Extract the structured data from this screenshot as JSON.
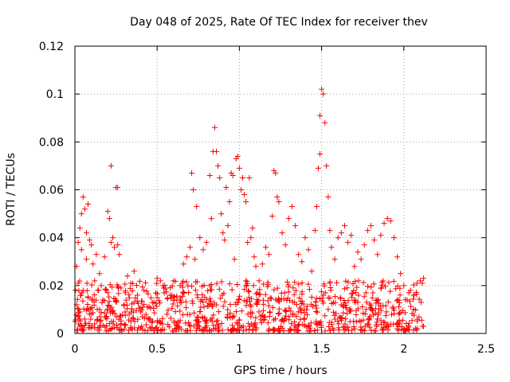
{
  "chart_data": {
    "type": "scatter",
    "title": "Day 048 of 2025, Rate Of TEC Index for receiver thev",
    "xlabel": "GPS time / hours",
    "ylabel": "ROTI / TECUs",
    "xlim": [
      0,
      2.5
    ],
    "ylim": [
      0,
      0.12
    ],
    "xticks": [
      0,
      0.5,
      1,
      1.5,
      2,
      2.5
    ],
    "xtick_labels": [
      "0",
      "0.5",
      "1",
      "1.5",
      "2",
      "2.5"
    ],
    "yticks": [
      0,
      0.02,
      0.04,
      0.06,
      0.08,
      0.1,
      0.12
    ],
    "ytick_labels": [
      "0",
      "0.02",
      "0.04",
      "0.06",
      "0.08",
      "0.1",
      "0.12"
    ],
    "grid": true,
    "marker": "+",
    "color": "#ff0000",
    "series": [
      {
        "name": "ROTI",
        "points": [
          [
            0.0,
            0.005
          ],
          [
            0.01,
            0.012
          ],
          [
            0.01,
            0.028
          ],
          [
            0.02,
            0.038
          ],
          [
            0.02,
            0.021
          ],
          [
            0.03,
            0.044
          ],
          [
            0.03,
            0.009
          ],
          [
            0.04,
            0.05
          ],
          [
            0.04,
            0.035
          ],
          [
            0.05,
            0.057
          ],
          [
            0.05,
            0.018
          ],
          [
            0.06,
            0.052
          ],
          [
            0.06,
            0.006
          ],
          [
            0.07,
            0.042
          ],
          [
            0.07,
            0.031
          ],
          [
            0.08,
            0.054
          ],
          [
            0.08,
            0.015
          ],
          [
            0.09,
            0.039
          ],
          [
            0.1,
            0.037
          ],
          [
            0.1,
            0.008
          ],
          [
            0.11,
            0.029
          ],
          [
            0.12,
            0.022
          ],
          [
            0.12,
            0.004
          ],
          [
            0.13,
            0.033
          ],
          [
            0.14,
            0.018
          ],
          [
            0.15,
            0.025
          ],
          [
            0.15,
            0.01
          ],
          [
            0.16,
            0.02
          ],
          [
            0.17,
            0.014
          ],
          [
            0.18,
            0.032
          ],
          [
            0.19,
            0.007
          ],
          [
            0.2,
            0.051
          ],
          [
            0.21,
            0.048
          ],
          [
            0.22,
            0.07
          ],
          [
            0.22,
            0.038
          ],
          [
            0.23,
            0.04
          ],
          [
            0.24,
            0.036
          ],
          [
            0.25,
            0.061
          ],
          [
            0.26,
            0.061
          ],
          [
            0.26,
            0.037
          ],
          [
            0.27,
            0.033
          ],
          [
            0.28,
            0.019
          ],
          [
            0.3,
            0.012
          ],
          [
            0.32,
            0.024
          ],
          [
            0.34,
            0.021
          ],
          [
            0.36,
            0.026
          ],
          [
            0.38,
            0.016
          ],
          [
            0.4,
            0.009
          ],
          [
            0.42,
            0.018
          ],
          [
            0.44,
            0.011
          ],
          [
            0.46,
            0.006
          ],
          [
            0.48,
            0.013
          ],
          [
            0.5,
            0.023
          ],
          [
            0.52,
            0.022
          ],
          [
            0.54,
            0.019
          ],
          [
            0.56,
            0.008
          ],
          [
            0.58,
            0.016
          ],
          [
            0.6,
            0.022
          ],
          [
            0.62,
            0.014
          ],
          [
            0.64,
            0.02
          ],
          [
            0.66,
            0.029
          ],
          [
            0.68,
            0.032
          ],
          [
            0.7,
            0.036
          ],
          [
            0.71,
            0.067
          ],
          [
            0.72,
            0.06
          ],
          [
            0.73,
            0.031
          ],
          [
            0.74,
            0.053
          ],
          [
            0.76,
            0.04
          ],
          [
            0.78,
            0.035
          ],
          [
            0.8,
            0.038
          ],
          [
            0.82,
            0.066
          ],
          [
            0.83,
            0.048
          ],
          [
            0.84,
            0.076
          ],
          [
            0.85,
            0.086
          ],
          [
            0.86,
            0.076
          ],
          [
            0.87,
            0.07
          ],
          [
            0.88,
            0.065
          ],
          [
            0.89,
            0.05
          ],
          [
            0.9,
            0.042
          ],
          [
            0.91,
            0.039
          ],
          [
            0.92,
            0.061
          ],
          [
            0.93,
            0.045
          ],
          [
            0.94,
            0.055
          ],
          [
            0.95,
            0.067
          ],
          [
            0.96,
            0.066
          ],
          [
            0.97,
            0.031
          ],
          [
            0.98,
            0.073
          ],
          [
            0.99,
            0.074
          ],
          [
            1.0,
            0.069
          ],
          [
            1.01,
            0.06
          ],
          [
            1.02,
            0.065
          ],
          [
            1.03,
            0.058
          ],
          [
            1.04,
            0.055
          ],
          [
            1.05,
            0.038
          ],
          [
            1.06,
            0.065
          ],
          [
            1.07,
            0.04
          ],
          [
            1.08,
            0.044
          ],
          [
            1.09,
            0.032
          ],
          [
            1.1,
            0.028
          ],
          [
            1.12,
            0.022
          ],
          [
            1.14,
            0.029
          ],
          [
            1.16,
            0.036
          ],
          [
            1.18,
            0.033
          ],
          [
            1.2,
            0.049
          ],
          [
            1.21,
            0.068
          ],
          [
            1.22,
            0.067
          ],
          [
            1.23,
            0.057
          ],
          [
            1.24,
            0.055
          ],
          [
            1.26,
            0.042
          ],
          [
            1.28,
            0.037
          ],
          [
            1.3,
            0.048
          ],
          [
            1.32,
            0.053
          ],
          [
            1.34,
            0.045
          ],
          [
            1.36,
            0.033
          ],
          [
            1.38,
            0.03
          ],
          [
            1.4,
            0.04
          ],
          [
            1.42,
            0.035
          ],
          [
            1.44,
            0.026
          ],
          [
            1.46,
            0.043
          ],
          [
            1.47,
            0.053
          ],
          [
            1.48,
            0.069
          ],
          [
            1.49,
            0.075
          ],
          [
            1.49,
            0.091
          ],
          [
            1.5,
            0.102
          ],
          [
            1.51,
            0.1
          ],
          [
            1.52,
            0.088
          ],
          [
            1.53,
            0.07
          ],
          [
            1.54,
            0.057
          ],
          [
            1.55,
            0.043
          ],
          [
            1.56,
            0.036
          ],
          [
            1.58,
            0.031
          ],
          [
            1.6,
            0.04
          ],
          [
            1.62,
            0.042
          ],
          [
            1.64,
            0.045
          ],
          [
            1.66,
            0.038
          ],
          [
            1.68,
            0.041
          ],
          [
            1.7,
            0.028
          ],
          [
            1.72,
            0.034
          ],
          [
            1.74,
            0.031
          ],
          [
            1.76,
            0.037
          ],
          [
            1.78,
            0.043
          ],
          [
            1.8,
            0.045
          ],
          [
            1.82,
            0.039
          ],
          [
            1.84,
            0.033
          ],
          [
            1.86,
            0.041
          ],
          [
            1.88,
            0.046
          ],
          [
            1.9,
            0.048
          ],
          [
            1.92,
            0.047
          ],
          [
            1.94,
            0.04
          ],
          [
            1.96,
            0.032
          ],
          [
            1.98,
            0.025
          ],
          [
            2.0,
            0.02
          ],
          [
            2.02,
            0.014
          ],
          [
            2.04,
            0.018
          ],
          [
            2.06,
            0.016
          ],
          [
            2.08,
            0.021
          ],
          [
            2.1,
            0.022
          ],
          [
            2.12,
            0.023
          ],
          [
            2.12,
            0.003
          ]
        ]
      }
    ],
    "dense_band": {
      "x_range": [
        0,
        2.12
      ],
      "y_range": [
        0.001,
        0.022
      ],
      "approx_points": 900
    }
  }
}
